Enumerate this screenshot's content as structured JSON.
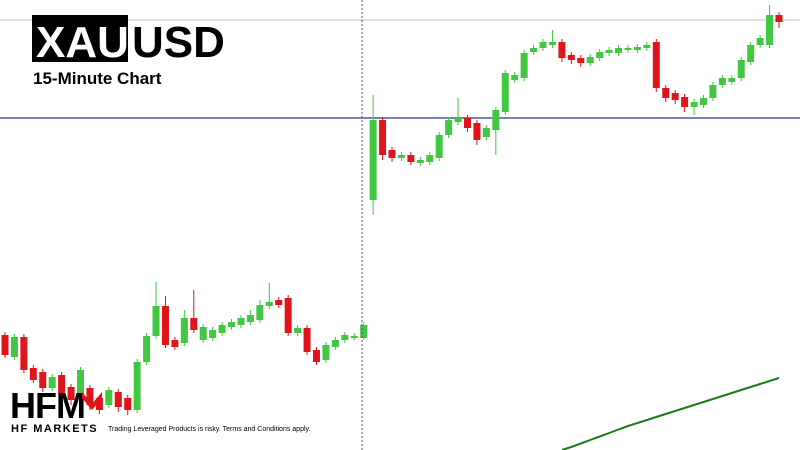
{
  "header": {
    "symbol_base": "XAU",
    "symbol_quote": "USD",
    "subtitle": "15-Minute Chart"
  },
  "logo": {
    "mark": "HFM",
    "name": "HF MARKETS"
  },
  "disclaimer": "Trading Leveraged Products is risky. Terms and Conditions apply.",
  "chart_data": {
    "type": "candlestick",
    "ylim": [
      0,
      450
    ],
    "up_color": "#43c743",
    "down_color": "#e0151b",
    "open": [
      115,
      93,
      113,
      82,
      78,
      62,
      75,
      63,
      55,
      62,
      52,
      45,
      58,
      52,
      40,
      88,
      114,
      144,
      110,
      107,
      132,
      110,
      112,
      117,
      123,
      125,
      128,
      130,
      144,
      150,
      152,
      117,
      122,
      100,
      90,
      103,
      110,
      112,
      112,
      250,
      330,
      300,
      292,
      295,
      287,
      288,
      292,
      315,
      328,
      332,
      327,
      313,
      320,
      338,
      370,
      372,
      398,
      402,
      405,
      408,
      395,
      392,
      387,
      392,
      397,
      397,
      400,
      400,
      402,
      408,
      362,
      357,
      353,
      343,
      345,
      352,
      365,
      368,
      372,
      388,
      405,
      405,
      435
    ],
    "high": [
      118,
      116,
      116,
      85,
      81,
      76,
      78,
      66,
      83,
      65,
      55,
      63,
      61,
      55,
      91,
      117,
      168,
      154,
      113,
      140,
      160,
      126,
      123,
      128,
      131,
      135,
      140,
      150,
      167,
      153,
      155,
      125,
      125,
      103,
      108,
      113,
      118,
      117,
      128,
      355,
      333,
      303,
      298,
      298,
      293,
      298,
      318,
      333,
      352,
      335,
      330,
      325,
      343,
      380,
      378,
      400,
      405,
      411,
      420,
      411,
      398,
      395,
      396,
      401,
      403,
      405,
      405,
      406,
      408,
      411,
      365,
      360,
      356,
      351,
      355,
      368,
      375,
      375,
      393,
      408,
      415,
      445,
      438
    ],
    "low": [
      92,
      90,
      77,
      67,
      58,
      59,
      50,
      45,
      52,
      40,
      36,
      42,
      38,
      35,
      37,
      85,
      111,
      102,
      100,
      104,
      117,
      107,
      109,
      114,
      120,
      122,
      125,
      127,
      141,
      142,
      114,
      114,
      95,
      85,
      87,
      100,
      107,
      110,
      110,
      235,
      290,
      288,
      289,
      285,
      284,
      285,
      289,
      312,
      325,
      318,
      305,
      310,
      295,
      335,
      367,
      369,
      395,
      399,
      402,
      388,
      386,
      383,
      384,
      389,
      394,
      394,
      397,
      397,
      399,
      358,
      348,
      346,
      338,
      335,
      342,
      349,
      362,
      365,
      369,
      385,
      402,
      402,
      422
    ],
    "close": [
      95,
      113,
      80,
      70,
      62,
      73,
      55,
      50,
      80,
      45,
      40,
      60,
      43,
      40,
      88,
      114,
      144,
      105,
      103,
      132,
      120,
      123,
      120,
      125,
      128,
      132,
      135,
      145,
      148,
      145,
      117,
      122,
      98,
      88,
      105,
      110,
      115,
      114,
      125,
      330,
      295,
      292,
      295,
      288,
      290,
      295,
      315,
      330,
      332,
      322,
      310,
      322,
      340,
      377,
      375,
      397,
      402,
      408,
      408,
      392,
      390,
      387,
      393,
      398,
      400,
      402,
      402,
      403,
      405,
      362,
      352,
      350,
      343,
      348,
      352,
      365,
      372,
      372,
      390,
      405,
      412,
      435,
      428
    ],
    "hlines": [
      {
        "value": 332,
        "color": "#2b3192"
      },
      {
        "value": 430,
        "color": "#cccccc"
      }
    ],
    "series": [
      {
        "color": "#1f7a1f",
        "values": [
          null,
          null,
          null,
          null,
          null,
          null,
          null,
          null,
          null,
          null,
          null,
          null,
          null,
          null,
          null,
          null,
          null,
          null,
          null,
          null,
          null,
          null,
          null,
          null,
          null,
          null,
          null,
          null,
          null,
          null,
          null,
          null,
          null,
          null,
          null,
          null,
          null,
          null,
          null,
          null,
          null,
          null,
          null,
          null,
          null,
          null,
          null,
          null,
          null,
          null,
          null,
          null,
          null,
          null,
          null,
          null,
          null,
          null,
          null,
          0,
          3,
          6.5,
          10,
          13.5,
          17,
          20.5,
          24,
          27,
          30,
          33,
          36,
          39,
          42,
          45,
          48,
          51,
          54,
          57,
          60,
          63,
          66,
          69,
          72
        ]
      }
    ]
  }
}
